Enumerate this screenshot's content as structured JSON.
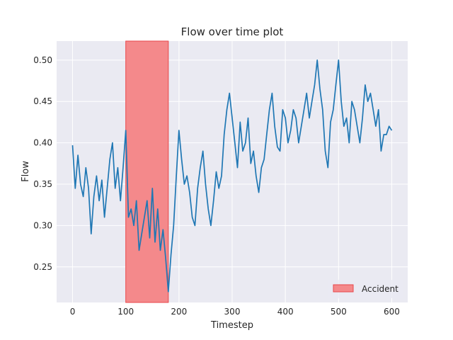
{
  "chart_data": {
    "type": "line",
    "title": "Flow over time plot",
    "xlabel": "Timestep",
    "ylabel": "Flow",
    "xlim": [
      -30,
      630
    ],
    "ylim": [
      0.207,
      0.523
    ],
    "xticks": [
      0,
      100,
      200,
      300,
      400,
      500,
      600
    ],
    "yticks": [
      0.25,
      0.3,
      0.35,
      0.4,
      0.45,
      0.5
    ],
    "grid": true,
    "legend": {
      "placement": "lower-right",
      "entries": [
        "Accident"
      ]
    },
    "colors": {
      "line": "#1f77b4",
      "accident_fill": "#f4898b",
      "accident_edge": "#e8474b",
      "background": "#eaeaf2",
      "grid": "#ffffff"
    },
    "accident_span": {
      "name": "Accident",
      "x_start": 100,
      "x_end": 180
    },
    "series": [
      {
        "x": [
          0,
          5,
          10,
          15,
          20,
          25,
          30,
          35,
          40,
          45,
          50,
          55,
          60,
          65,
          70,
          75,
          80,
          85,
          90,
          95,
          100,
          105,
          110,
          115,
          120,
          125,
          130,
          135,
          140,
          145,
          150,
          155,
          160,
          165,
          170,
          175,
          180,
          185,
          190,
          195,
          200,
          205,
          210,
          215,
          220,
          225,
          230,
          235,
          240,
          245,
          250,
          255,
          260,
          265,
          270,
          275,
          280,
          285,
          290,
          295,
          300,
          305,
          310,
          315,
          320,
          325,
          330,
          335,
          340,
          345,
          350,
          355,
          360,
          365,
          370,
          375,
          380,
          385,
          390,
          395,
          400,
          405,
          410,
          415,
          420,
          425,
          430,
          435,
          440,
          445,
          450,
          455,
          460,
          465,
          470,
          475,
          480,
          485,
          490,
          495,
          500,
          505,
          510,
          515,
          520,
          525,
          530,
          535,
          540,
          545,
          550,
          555,
          560,
          565,
          570,
          575,
          580,
          585,
          590,
          595,
          600
        ],
        "values": [
          0.397,
          0.345,
          0.385,
          0.35,
          0.335,
          0.37,
          0.345,
          0.29,
          0.335,
          0.36,
          0.33,
          0.355,
          0.31,
          0.345,
          0.38,
          0.4,
          0.345,
          0.37,
          0.33,
          0.37,
          0.415,
          0.31,
          0.32,
          0.3,
          0.33,
          0.27,
          0.29,
          0.31,
          0.33,
          0.285,
          0.345,
          0.28,
          0.32,
          0.27,
          0.295,
          0.26,
          0.22,
          0.265,
          0.3,
          0.36,
          0.415,
          0.38,
          0.35,
          0.36,
          0.34,
          0.31,
          0.3,
          0.345,
          0.37,
          0.39,
          0.35,
          0.32,
          0.3,
          0.33,
          0.365,
          0.345,
          0.36,
          0.41,
          0.44,
          0.46,
          0.43,
          0.4,
          0.37,
          0.425,
          0.39,
          0.4,
          0.43,
          0.375,
          0.39,
          0.36,
          0.34,
          0.37,
          0.38,
          0.41,
          0.44,
          0.46,
          0.42,
          0.395,
          0.39,
          0.44,
          0.43,
          0.4,
          0.415,
          0.44,
          0.43,
          0.4,
          0.42,
          0.44,
          0.46,
          0.43,
          0.45,
          0.47,
          0.5,
          0.465,
          0.44,
          0.39,
          0.37,
          0.425,
          0.44,
          0.47,
          0.5,
          0.45,
          0.42,
          0.43,
          0.4,
          0.45,
          0.44,
          0.42,
          0.4,
          0.43,
          0.47,
          0.45,
          0.46,
          0.44,
          0.42,
          0.44,
          0.39,
          0.41,
          0.41,
          0.42,
          0.415
        ]
      }
    ]
  }
}
